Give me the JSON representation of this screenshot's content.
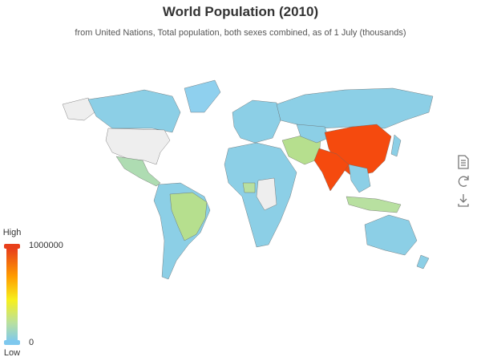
{
  "title": "World Population (2010)",
  "subtitle": "from United Nations, Total population, both sexes combined, as of 1 July (thousands)",
  "visual_map": {
    "min": 0,
    "max": 1000000,
    "text": [
      "High",
      "Low"
    ]
  }
}
